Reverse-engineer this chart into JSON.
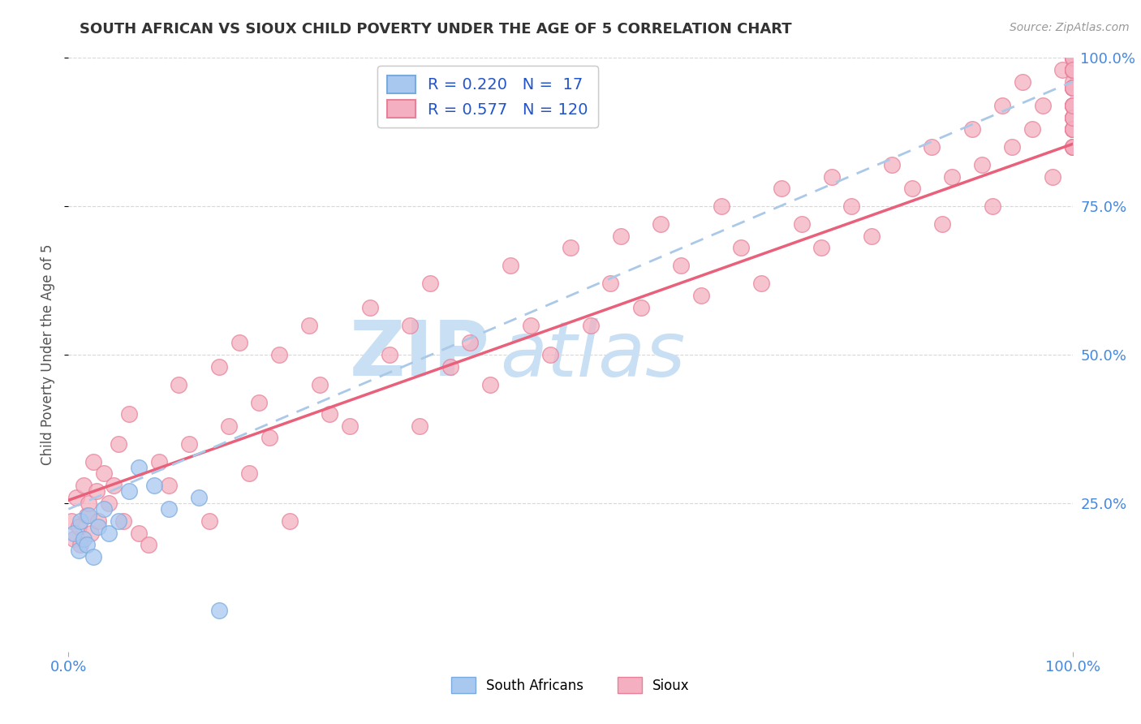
{
  "title": "SOUTH AFRICAN VS SIOUX CHILD POVERTY UNDER THE AGE OF 5 CORRELATION CHART",
  "source": "Source: ZipAtlas.com",
  "ylabel": "Child Poverty Under the Age of 5",
  "blue_R": 0.22,
  "blue_N": 17,
  "pink_R": 0.577,
  "pink_N": 120,
  "blue_scatter_color": "#a8c8f0",
  "blue_edge_color": "#7aabdf",
  "pink_scatter_color": "#f4b0c0",
  "pink_edge_color": "#e8809a",
  "blue_line_color": "#aac8e8",
  "pink_line_color": "#e8607a",
  "watermark_zip_color": "#c8dff4",
  "watermark_atlas_color": "#c8dff4",
  "legend_blue_face": "#a8c8f0",
  "legend_pink_face": "#f4b0c0",
  "legend_text_color": "#2255cc",
  "label_color": "#4488dd",
  "background_color": "#ffffff",
  "grid_color": "#d8d8d8",
  "title_color": "#333333",
  "ylabel_color": "#555555",
  "blue_line_intercept": 24.0,
  "blue_line_slope": 0.72,
  "pink_line_intercept": 25.5,
  "pink_line_slope": 0.6,
  "blue_x": [
    0.5,
    1.0,
    1.2,
    1.5,
    1.8,
    2.0,
    2.5,
    3.0,
    3.5,
    4.0,
    5.0,
    6.0,
    7.0,
    8.5,
    10.0,
    13.0,
    15.0
  ],
  "blue_y": [
    20.0,
    17.0,
    22.0,
    19.0,
    18.0,
    23.0,
    16.0,
    21.0,
    24.0,
    20.0,
    22.0,
    27.0,
    31.0,
    28.0,
    24.0,
    26.0,
    7.0
  ],
  "pink_x": [
    0.3,
    0.5,
    0.8,
    1.0,
    1.2,
    1.5,
    1.8,
    2.0,
    2.2,
    2.5,
    2.8,
    3.0,
    3.5,
    4.0,
    4.5,
    5.0,
    5.5,
    6.0,
    7.0,
    8.0,
    9.0,
    10.0,
    11.0,
    12.0,
    14.0,
    15.0,
    16.0,
    17.0,
    18.0,
    19.0,
    20.0,
    21.0,
    22.0,
    24.0,
    25.0,
    26.0,
    28.0,
    30.0,
    32.0,
    34.0,
    35.0,
    36.0,
    38.0,
    40.0,
    42.0,
    44.0,
    46.0,
    48.0,
    50.0,
    52.0,
    54.0,
    55.0,
    57.0,
    59.0,
    61.0,
    63.0,
    65.0,
    67.0,
    69.0,
    71.0,
    73.0,
    75.0,
    76.0,
    78.0,
    80.0,
    82.0,
    84.0,
    86.0,
    87.0,
    88.0,
    90.0,
    91.0,
    92.0,
    93.0,
    94.0,
    95.0,
    96.0,
    97.0,
    98.0,
    99.0,
    100.0,
    100.0,
    100.0,
    100.0,
    100.0,
    100.0,
    100.0,
    100.0,
    100.0,
    100.0,
    100.0,
    100.0,
    100.0,
    100.0,
    100.0,
    100.0,
    100.0,
    100.0,
    100.0,
    100.0,
    100.0,
    100.0,
    100.0,
    100.0,
    100.0,
    100.0,
    100.0,
    100.0,
    100.0,
    100.0,
    100.0,
    100.0,
    100.0,
    100.0,
    100.0,
    100.0,
    100.0,
    100.0,
    100.0,
    100.0
  ],
  "pink_y": [
    22.0,
    19.0,
    26.0,
    21.0,
    18.0,
    28.0,
    23.0,
    25.0,
    20.0,
    32.0,
    27.0,
    22.0,
    30.0,
    25.0,
    28.0,
    35.0,
    22.0,
    40.0,
    20.0,
    18.0,
    32.0,
    28.0,
    45.0,
    35.0,
    22.0,
    48.0,
    38.0,
    52.0,
    30.0,
    42.0,
    36.0,
    50.0,
    22.0,
    55.0,
    45.0,
    40.0,
    38.0,
    58.0,
    50.0,
    55.0,
    38.0,
    62.0,
    48.0,
    52.0,
    45.0,
    65.0,
    55.0,
    50.0,
    68.0,
    55.0,
    62.0,
    70.0,
    58.0,
    72.0,
    65.0,
    60.0,
    75.0,
    68.0,
    62.0,
    78.0,
    72.0,
    68.0,
    80.0,
    75.0,
    70.0,
    82.0,
    78.0,
    85.0,
    72.0,
    80.0,
    88.0,
    82.0,
    75.0,
    92.0,
    85.0,
    96.0,
    88.0,
    92.0,
    80.0,
    98.0,
    90.0,
    95.0,
    88.0,
    100.0,
    92.0,
    98.0,
    85.0,
    96.0,
    90.0,
    100.0,
    88.0,
    100.0,
    92.0,
    98.0,
    85.0,
    95.0,
    90.0,
    100.0,
    95.0,
    98.0,
    92.0,
    100.0,
    88.0,
    95.0,
    98.0,
    92.0,
    100.0,
    85.0,
    95.0,
    88.0,
    90.0,
    98.0,
    100.0,
    92.0,
    95.0,
    88.0,
    85.0,
    90.0,
    92.0,
    98.0
  ]
}
